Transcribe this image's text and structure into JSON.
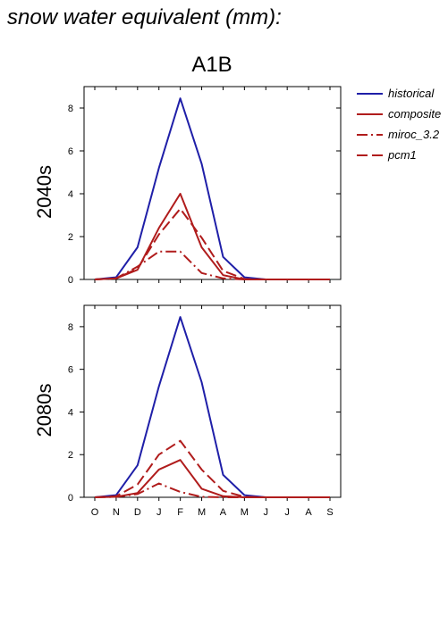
{
  "page_title": "snow water equivalent (mm):",
  "figure_title": "A1B",
  "colors": {
    "historical": "#1f1fa8",
    "red": "#b01c1c"
  },
  "legend": [
    {
      "name": "historical",
      "color": "#1f1fa8",
      "dash": "solid"
    },
    {
      "name": "composite",
      "color": "#b01c1c",
      "dash": "solid"
    },
    {
      "name": "miroc_3.2",
      "color": "#b01c1c",
      "dash": "dashdot"
    },
    {
      "name": "pcm1",
      "color": "#b01c1c",
      "dash": "dashed"
    }
  ],
  "chart_data": [
    {
      "type": "line",
      "title": "2040s",
      "ylabel": "2040s",
      "categories": [
        "O",
        "N",
        "D",
        "J",
        "F",
        "M",
        "A",
        "M",
        "J",
        "J",
        "A",
        "S"
      ],
      "ylim": [
        0,
        9
      ],
      "yticks": [
        0,
        2,
        4,
        6,
        8
      ],
      "series": [
        {
          "name": "historical",
          "dash": "solid",
          "color": "#1f1fa8",
          "values": [
            0,
            0.1,
            1.5,
            5.2,
            8.45,
            5.4,
            1.05,
            0.1,
            0,
            0,
            0,
            0
          ]
        },
        {
          "name": "composite",
          "dash": "solid",
          "color": "#b01c1c",
          "values": [
            0,
            0.05,
            0.45,
            2.4,
            4.0,
            1.5,
            0.2,
            0,
            0,
            0,
            0,
            0
          ]
        },
        {
          "name": "miroc_3.2",
          "dash": "dashdot",
          "color": "#b01c1c",
          "values": [
            0,
            0.05,
            0.6,
            1.3,
            1.3,
            0.3,
            0.05,
            0,
            0,
            0,
            0,
            0
          ]
        },
        {
          "name": "pcm1",
          "dash": "dashed",
          "color": "#b01c1c",
          "values": [
            0,
            0.05,
            0.5,
            2.1,
            3.3,
            1.95,
            0.4,
            0.02,
            0,
            0,
            0,
            0
          ]
        }
      ]
    },
    {
      "type": "line",
      "title": "2080s",
      "ylabel": "2080s",
      "categories": [
        "O",
        "N",
        "D",
        "J",
        "F",
        "M",
        "A",
        "M",
        "J",
        "J",
        "A",
        "S"
      ],
      "ylim": [
        0,
        9
      ],
      "yticks": [
        0,
        2,
        4,
        6,
        8
      ],
      "series": [
        {
          "name": "historical",
          "dash": "solid",
          "color": "#1f1fa8",
          "values": [
            0,
            0.1,
            1.5,
            5.2,
            8.45,
            5.4,
            1.05,
            0.1,
            0,
            0,
            0,
            0
          ]
        },
        {
          "name": "composite",
          "dash": "solid",
          "color": "#b01c1c",
          "values": [
            0,
            0.02,
            0.2,
            1.3,
            1.75,
            0.4,
            0.05,
            0,
            0,
            0,
            0,
            0
          ]
        },
        {
          "name": "miroc_3.2",
          "dash": "dashdot",
          "color": "#b01c1c",
          "values": [
            0,
            0.02,
            0.15,
            0.65,
            0.25,
            0.02,
            0,
            0,
            0,
            0,
            0,
            0
          ]
        },
        {
          "name": "pcm1",
          "dash": "dashed",
          "color": "#b01c1c",
          "values": [
            0,
            0.05,
            0.6,
            2.0,
            2.65,
            1.3,
            0.3,
            0.02,
            0,
            0,
            0,
            0
          ]
        }
      ]
    }
  ]
}
